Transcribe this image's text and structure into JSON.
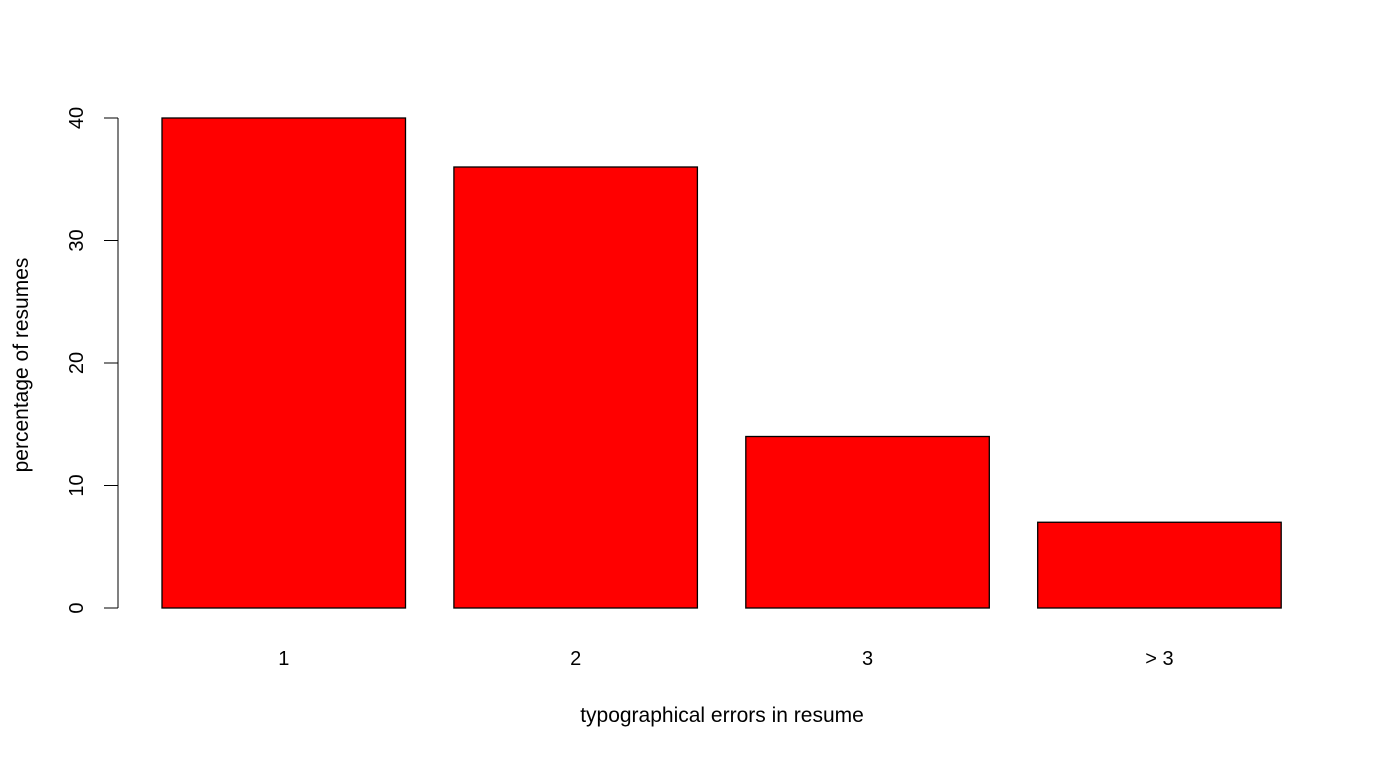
{
  "chart_data": {
    "type": "bar",
    "title": "",
    "xlabel": "typographical errors in resume",
    "ylabel": "percentage of resumes",
    "categories": [
      "1",
      "2",
      "3",
      "> 3"
    ],
    "values": [
      40,
      36,
      14,
      7
    ],
    "ylim": [
      0,
      40
    ],
    "yticks": [
      0,
      10,
      20,
      30,
      40
    ],
    "grid": false,
    "legend": "none",
    "bar_color": "#ff0000",
    "bar_border_color": "#000000"
  }
}
